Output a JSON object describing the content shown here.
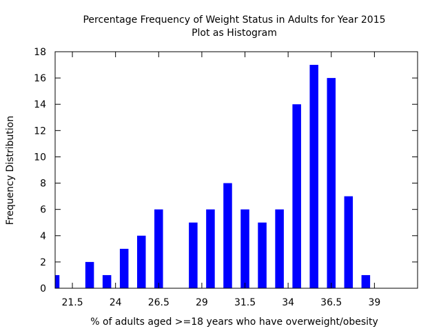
{
  "chart_data": {
    "type": "bar",
    "title": "Percentage Frequency of Weight Status in Adults for Year 2015",
    "subtitle": "Plot as Histogram",
    "xlabel": "% of adults aged >=18 years who have overweight/obesity",
    "ylabel": "Frequency Distribution",
    "bar_color": "#0000ff",
    "grid": false,
    "xlim": [
      20.5,
      41.5
    ],
    "ylim": [
      0,
      18
    ],
    "x_ticks": [
      "21.5",
      "24",
      "26.5",
      "29",
      "31.5",
      "34",
      "36.5",
      "39"
    ],
    "y_ticks": [
      "0",
      "2",
      "4",
      "6",
      "8",
      "10",
      "12",
      "14",
      "16",
      "18"
    ],
    "x": [
      20.5,
      22.5,
      23.5,
      24.5,
      25.5,
      26.5,
      28.5,
      29.5,
      30.5,
      31.5,
      32.5,
      33.5,
      34.5,
      35.5,
      36.5,
      37.5,
      38.5
    ],
    "values": [
      1,
      2,
      1,
      3,
      4,
      6,
      5,
      6,
      8,
      6,
      5,
      6,
      14,
      17,
      16,
      7,
      1
    ]
  }
}
